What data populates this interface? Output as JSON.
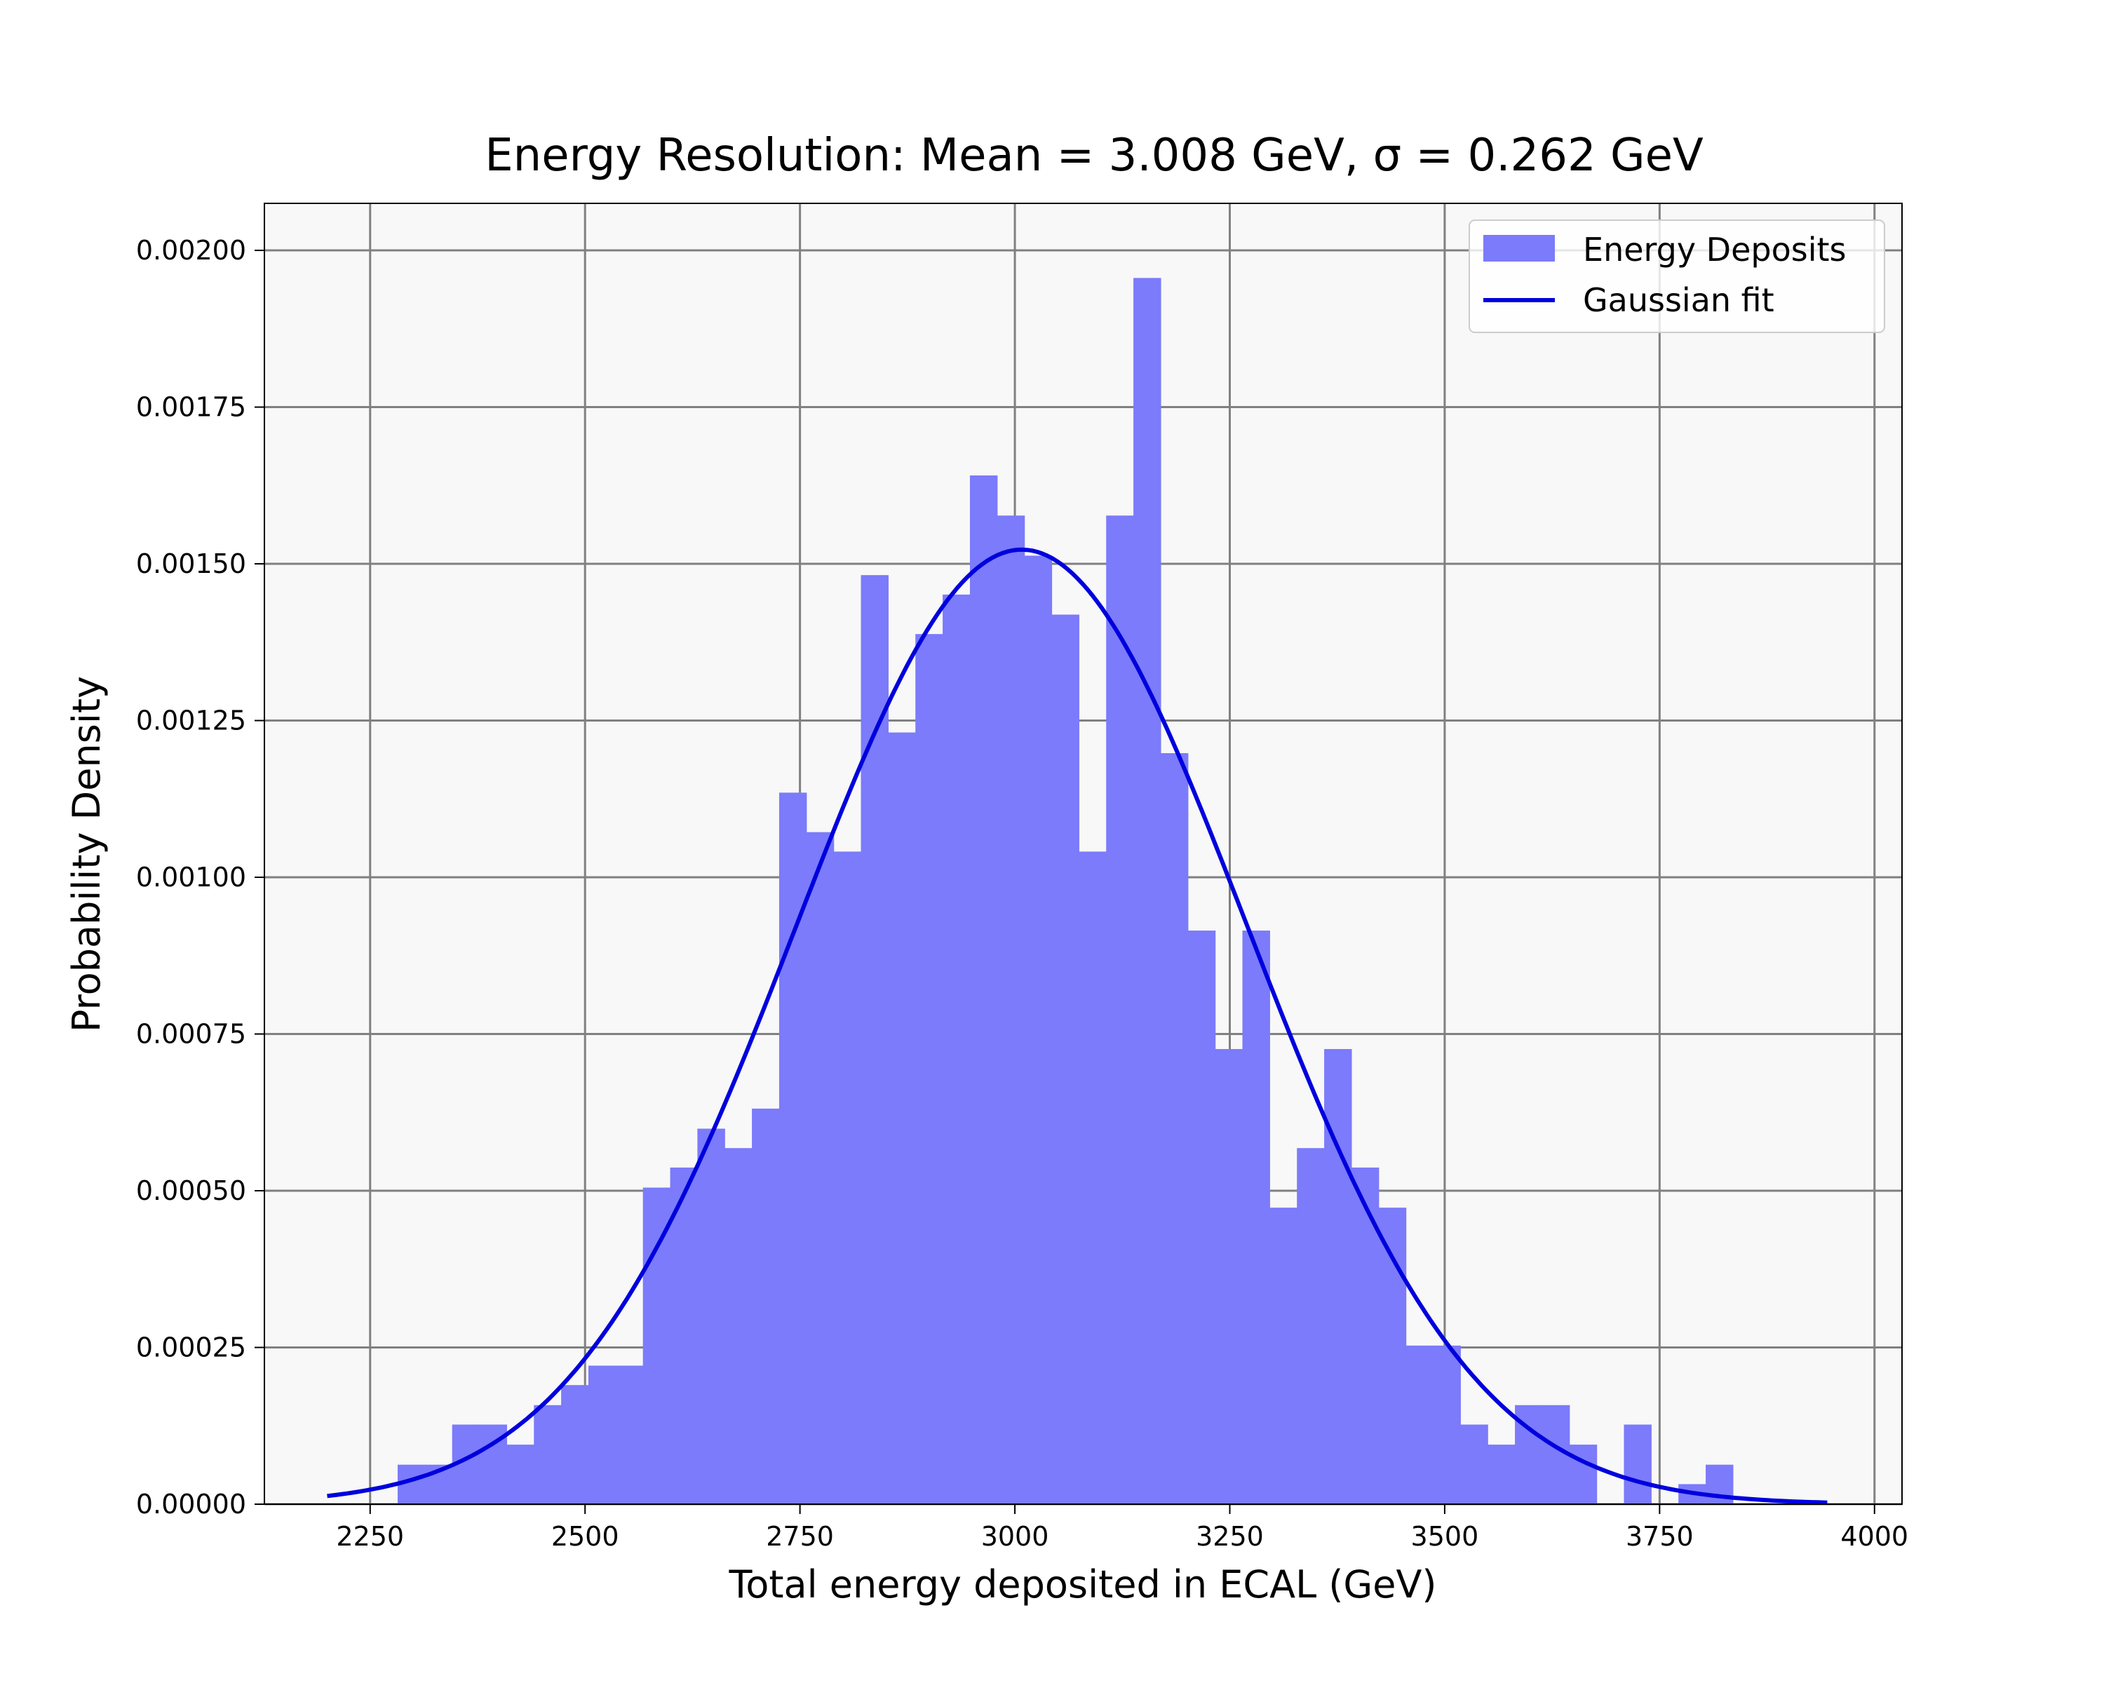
{
  "chart_data": {
    "type": "bar",
    "title": "Energy Resolution: Mean = 3.008 GeV, σ = 0.262 GeV",
    "xlabel": "Total energy deposited in ECAL (GeV)",
    "ylabel": "Probability Density",
    "xlim": [
      2127,
      4032
    ],
    "ylim": [
      0,
      0.002075
    ],
    "xticks": [
      2250,
      2500,
      2750,
      3000,
      3250,
      3500,
      3750,
      4000
    ],
    "xtick_labels": [
      "2250",
      "2500",
      "2750",
      "3000",
      "3250",
      "3500",
      "3750",
      "4000"
    ],
    "yticks": [
      0,
      0.00025,
      0.0005,
      0.00075,
      0.001,
      0.00125,
      0.0015,
      0.00175,
      0.002
    ],
    "ytick_labels": [
      "0.00000",
      "0.00025",
      "0.00050",
      "0.00075",
      "0.00100",
      "0.00125",
      "0.00150",
      "0.00175",
      "0.00200"
    ],
    "grid": true,
    "legend_position": "top-right",
    "background_color": "#f8f8f8",
    "histogram": {
      "name": "Energy Deposits",
      "color": "#7b7bfb",
      "bin_start": 2282,
      "bin_width": 31.7,
      "values": [
        6.3e-05,
        6.3e-05,
        0.000127,
        0.000127,
        9.5e-05,
        0.000158,
        0.00019,
        0.000221,
        0.000221,
        0.000505,
        0.000537,
        0.000599,
        0.000568,
        0.000631,
        0.001135,
        0.001072,
        0.001041,
        0.001482,
        0.001231,
        0.001388,
        0.001451,
        0.001641,
        0.001577,
        0.001513,
        0.001419,
        0.001041,
        0.001577,
        0.001956,
        0.001198,
        0.000915,
        0.000726,
        0.000915,
        0.000473,
        0.000568,
        0.000726,
        0.000537,
        0.000473,
        0.000253,
        0.000253,
        0.000127,
        9.5e-05,
        0.000158,
        0.000158,
        9.5e-05,
        0.0,
        0.000127,
        0.0,
        3.2e-05,
        6.3e-05
      ]
    },
    "fit": {
      "name": "Gaussian fit",
      "color": "#0000dd",
      "mean": 3008,
      "sigma": 262,
      "x_range": [
        2200,
        3945
      ]
    },
    "legend": [
      "Energy Deposits",
      "Gaussian fit"
    ]
  }
}
